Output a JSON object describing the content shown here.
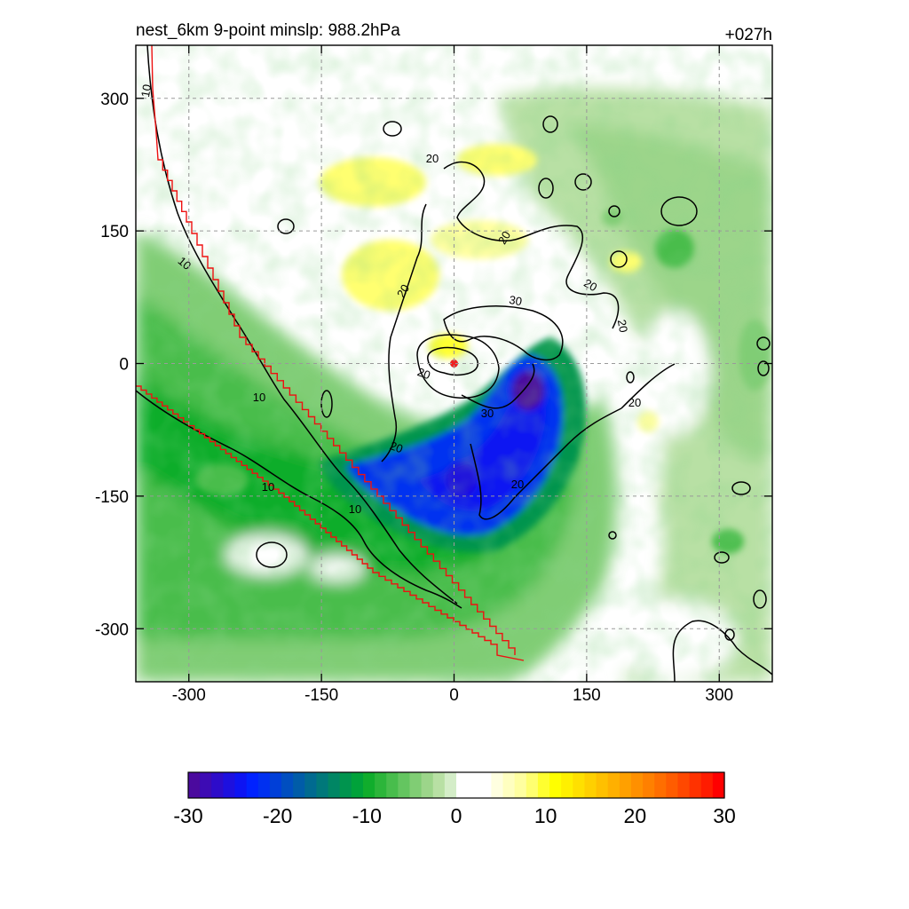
{
  "header": {
    "title_left": "nest_6km  9-point minslp: 988.2hPa",
    "title_right": "+027h"
  },
  "chart_data": {
    "type": "heatmap",
    "title": "nest_6km  9-point minslp: 988.2hPa",
    "forecast_hour_label": "+027h",
    "xlim": [
      -360,
      360
    ],
    "ylim": [
      -360,
      360
    ],
    "x_ticks": [
      -300,
      -150,
      0,
      150,
      300
    ],
    "y_ticks": [
      -300,
      -150,
      0,
      150,
      300
    ],
    "x_tick_labels": [
      "-300",
      "-150",
      "0",
      "150",
      "300"
    ],
    "y_tick_labels": [
      "300",
      "150",
      "0",
      "-150",
      "-300"
    ],
    "grid": true,
    "storm_center": [
      0,
      0
    ],
    "storm_center_color": "#ee2222",
    "coastline_color": "#ee1111",
    "shading_range": [
      -30,
      30
    ],
    "shading_features": [
      {
        "kind": "min",
        "center": [
          70,
          -100
        ],
        "value": -25
      },
      {
        "kind": "min",
        "center": [
          95,
          -25
        ],
        "value": -28
      },
      {
        "kind": "min",
        "center": [
          -40,
          -120
        ],
        "value": -22
      },
      {
        "kind": "min",
        "center": [
          20,
          -130
        ],
        "value": -24
      },
      {
        "kind": "min",
        "center": [
          -250,
          -60
        ],
        "value": -10
      },
      {
        "kind": "min",
        "center": [
          -200,
          -200
        ],
        "value": -9
      },
      {
        "kind": "min",
        "center": [
          280,
          50
        ],
        "value": -8
      },
      {
        "kind": "min",
        "center": [
          230,
          200
        ],
        "value": -7
      },
      {
        "kind": "max",
        "center": [
          -70,
          220
        ],
        "value": 7
      },
      {
        "kind": "max",
        "center": [
          30,
          230
        ],
        "value": 8
      },
      {
        "kind": "max",
        "center": [
          -70,
          90
        ],
        "value": 7
      },
      {
        "kind": "max",
        "center": [
          -10,
          20
        ],
        "value": 7
      },
      {
        "kind": "max",
        "center": [
          210,
          -60
        ],
        "value": 5
      }
    ],
    "contour_labels": [
      "10",
      "10",
      "10",
      "10",
      "10",
      "20",
      "20",
      "20",
      "20",
      "20",
      "20",
      "20",
      "20",
      "20",
      "30",
      "30"
    ],
    "colorbar": {
      "min": -30,
      "max": 30,
      "tick_values": [
        -30,
        -20,
        -10,
        0,
        10,
        20,
        30
      ],
      "tick_labels": [
        "-30",
        "-20",
        "-10",
        "0",
        "10",
        "20",
        "30"
      ],
      "colors": [
        "#4b0a9e",
        "#3d0bb4",
        "#2d0cca",
        "#1d10df",
        "#0d14f2",
        "#0022ff",
        "#0030f0",
        "#003fd8",
        "#004ec0",
        "#005ca8",
        "#006a90",
        "#00787a",
        "#008664",
        "#00944e",
        "#00a23a",
        "#10ad2c",
        "#2cb53a",
        "#48bd4c",
        "#64c560",
        "#80cd74",
        "#9cd58a",
        "#b8e0a4",
        "#d4edc8",
        "#ffffff",
        "#ffffff",
        "#ffffff",
        "#ffffe0",
        "#ffffc0",
        "#ffffa0",
        "#ffff70",
        "#ffff30",
        "#ffff00",
        "#fff000",
        "#ffe000",
        "#ffd000",
        "#ffc000",
        "#ffb000",
        "#ffa000",
        "#ff9000",
        "#ff8000",
        "#ff6e00",
        "#ff5c00",
        "#ff4800",
        "#ff3200",
        "#ff1c00",
        "#ff0000"
      ]
    }
  }
}
